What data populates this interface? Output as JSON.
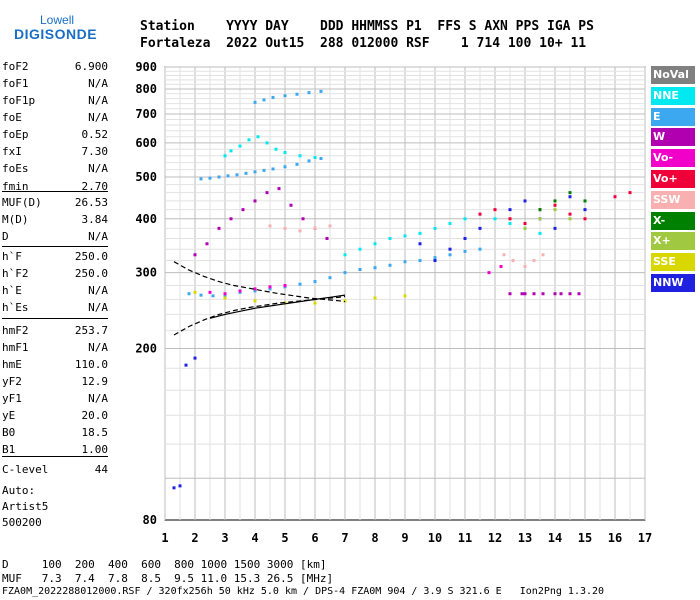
{
  "logo": {
    "top": "Lowell",
    "bottom": "DIGISONDE"
  },
  "header": {
    "line1": "Station    YYYY DAY    DDD HHMMSS P1  FFS S AXN PPS IGA PS",
    "line2": "Fortaleza  2022 Out15  288 012000 RSF    1 714 100 10+ 11"
  },
  "params": [
    {
      "name": "foF2",
      "value": "6.900"
    },
    {
      "name": "foF1",
      "value": "N/A"
    },
    {
      "name": "foF1p",
      "value": "N/A"
    },
    {
      "name": "foE",
      "value": "N/A"
    },
    {
      "name": "foEp",
      "value": "0.52"
    },
    {
      "name": "fxI",
      "value": "7.30"
    },
    {
      "name": "foEs",
      "value": "N/A"
    },
    {
      "name": "fmin",
      "value": "2.70"
    },
    {
      "name": "MUF(D)",
      "value": "26.53"
    },
    {
      "name": "M(D)",
      "value": "3.84"
    },
    {
      "name": "D",
      "value": "N/A"
    },
    {
      "name": "h`F",
      "value": "250.0"
    },
    {
      "name": "h`F2",
      "value": "250.0"
    },
    {
      "name": "h`E",
      "value": "N/A"
    },
    {
      "name": "h`Es",
      "value": "N/A"
    },
    {
      "name": "hmF2",
      "value": "253.7"
    },
    {
      "name": "hmF1",
      "value": "N/A"
    },
    {
      "name": "hmE",
      "value": "110.0"
    },
    {
      "name": "yF2",
      "value": "12.9"
    },
    {
      "name": "yF1",
      "value": "N/A"
    },
    {
      "name": "yE",
      "value": "20.0"
    },
    {
      "name": "B0",
      "value": "18.5"
    },
    {
      "name": "B1",
      "value": "1.00"
    },
    {
      "name": "C-level",
      "value": "44"
    }
  ],
  "auto": {
    "label": "Auto:",
    "artist": "Artist5",
    "version": "500200"
  },
  "legend": [
    {
      "label": "NoVal",
      "color": "#808080"
    },
    {
      "label": "NNE",
      "color": "#00e8f0"
    },
    {
      "label": "E",
      "color": "#3ca8f0"
    },
    {
      "label": "W",
      "color": "#b000b0"
    },
    {
      "label": "Vo-",
      "color": "#f000c8"
    },
    {
      "label": "Vo+",
      "color": "#f00038"
    },
    {
      "label": "SSW",
      "color": "#f8b0b0"
    },
    {
      "label": "X-",
      "color": "#008000"
    },
    {
      "label": "X+",
      "color": "#a0c840"
    },
    {
      "label": "SSE",
      "color": "#d8d800"
    },
    {
      "label": "NNW",
      "color": "#2020e0"
    }
  ],
  "footer": {
    "d_line": "D     100  200  400  600  800 1000 1500 3000 [km]",
    "muf_line": "MUF   7.3  7.4  7.8  8.5  9.5 11.0 15.3 26.5 [MHz]",
    "file_line": "FZA0M_2022288012000.RSF / 320fx256h 50 kHz 5.0 km / DPS-4 FZA0M 904 / 3.9 S 321.6 E   Ion2Png 1.3.20"
  },
  "chart_data": {
    "type": "scatter",
    "xlim": [
      1,
      17
    ],
    "ylim": [
      80,
      900
    ],
    "xticks": [
      "1",
      "2",
      "3",
      "4",
      "5",
      "6",
      "7",
      "8",
      "9",
      "10",
      "11",
      "12",
      "13",
      "14",
      "15",
      "16",
      "17"
    ],
    "yticks": [
      "80",
      "200",
      "300",
      "400",
      "500",
      "600",
      "700",
      "800",
      "900"
    ],
    "grid": true,
    "y_scale": "log",
    "series": [
      {
        "color": "#3ca8f0",
        "x": [
          1.8,
          2.2,
          2.6,
          3.0,
          3.5,
          4.0,
          4.5,
          5.0,
          5.5,
          6.0,
          6.5,
          7.0,
          7.5,
          8.0,
          8.5,
          9.0,
          9.5,
          10.0,
          10.5,
          11.0,
          11.5
        ],
        "y": [
          268,
          266,
          265,
          266,
          270,
          272,
          275,
          278,
          282,
          286,
          292,
          300,
          305,
          308,
          312,
          318,
          320,
          325,
          330,
          336,
          340
        ]
      },
      {
        "color": "#3ca8f0",
        "x": [
          2.2,
          2.5,
          2.8,
          3.1,
          3.4,
          3.7,
          4.0,
          4.3,
          4.6,
          5.0,
          5.4,
          5.8,
          6.2
        ],
        "y": [
          495,
          497,
          500,
          503,
          506,
          510,
          514,
          518,
          522,
          528,
          535,
          545,
          552
        ]
      },
      {
        "color": "#3ca8f0",
        "x": [
          4.0,
          4.3,
          4.6,
          5.0,
          5.4,
          5.8,
          6.2
        ],
        "y": [
          745,
          755,
          765,
          772,
          778,
          785,
          790
        ]
      },
      {
        "color": "#00e8f0",
        "x": [
          3.0,
          3.2,
          3.5,
          3.8,
          4.1,
          4.4,
          4.7,
          5.0,
          5.5,
          6.0
        ],
        "y": [
          560,
          575,
          590,
          610,
          620,
          600,
          580,
          570,
          560,
          555
        ]
      },
      {
        "color": "#00e8f0",
        "x": [
          7.0,
          7.5,
          8.0,
          8.5,
          9.0,
          9.5,
          10.0,
          10.5,
          11.0,
          11.5,
          12.0,
          12.5,
          13.0,
          13.5
        ],
        "y": [
          330,
          340,
          350,
          360,
          365,
          370,
          380,
          390,
          400,
          410,
          400,
          390,
          380,
          370
        ]
      },
      {
        "color": "#b000b0",
        "x": [
          2.0,
          2.4,
          2.8,
          3.2,
          3.6,
          4.0,
          4.4,
          4.8,
          5.2,
          5.6,
          6.0,
          6.4
        ],
        "y": [
          330,
          350,
          380,
          400,
          420,
          440,
          460,
          470,
          430,
          400,
          380,
          360
        ]
      },
      {
        "color": "#b000b0",
        "x": [
          12.5,
          12.9,
          13.0,
          13.3,
          13.6,
          14.0,
          14.2,
          14.5,
          14.8
        ],
        "y": [
          268,
          268,
          268,
          268,
          268,
          268,
          268,
          268,
          268
        ]
      },
      {
        "color": "#f8b0b0",
        "x": [
          4.5,
          5.0,
          5.5,
          6.0,
          6.5,
          12.3,
          12.6,
          13.0,
          13.3,
          13.6
        ],
        "y": [
          385,
          380,
          375,
          380,
          385,
          330,
          320,
          310,
          320,
          330
        ]
      },
      {
        "color": "#f00038",
        "x": [
          11.5,
          12.0,
          12.5,
          13.0,
          13.5,
          14.0,
          14.5,
          15.0,
          16.0,
          16.5
        ],
        "y": [
          410,
          420,
          400,
          390,
          420,
          430,
          410,
          400,
          450,
          460
        ]
      },
      {
        "color": "#2020e0",
        "x": [
          9.5,
          10.0,
          10.5,
          11.0,
          11.5,
          12.5,
          13.0,
          13.5,
          14.0,
          14.5,
          15.0
        ],
        "y": [
          350,
          320,
          340,
          360,
          380,
          420,
          440,
          400,
          380,
          450,
          420
        ]
      },
      {
        "color": "#2020e0",
        "x": [
          1.7,
          2.0
        ],
        "y": [
          183,
          190
        ]
      },
      {
        "color": "#2020e0",
        "x": [
          1.3,
          1.5
        ],
        "y": [
          95,
          96
        ]
      },
      {
        "color": "#d8d800",
        "x": [
          2.0,
          3.0,
          4.0,
          5.0,
          6.0,
          7.0,
          8.0,
          9.0
        ],
        "y": [
          270,
          262,
          258,
          255,
          255,
          258,
          262,
          265
        ]
      },
      {
        "color": "#008000",
        "x": [
          13.5,
          14.0,
          14.5,
          15.0
        ],
        "y": [
          420,
          440,
          460,
          440
        ]
      },
      {
        "color": "#a0c840",
        "x": [
          13.0,
          13.5,
          14.0,
          14.5
        ],
        "y": [
          380,
          400,
          420,
          400
        ]
      },
      {
        "color": "#f000c8",
        "x": [
          2.5,
          3.0,
          3.5,
          4.0,
          4.5,
          5.0,
          11.8,
          12.2
        ],
        "y": [
          270,
          268,
          272,
          275,
          278,
          280,
          300,
          310
        ]
      }
    ],
    "curves": [
      {
        "style": "dashed",
        "x": [
          1.3,
          1.8,
          2.3,
          2.8,
          3.3,
          3.8,
          4.3,
          4.8,
          5.3,
          5.8,
          6.3,
          6.8,
          7.0
        ],
        "y": [
          318,
          304,
          294,
          286,
          280,
          276,
          272,
          268,
          265,
          262,
          260,
          258,
          257
        ]
      },
      {
        "style": "dashed",
        "x": [
          1.3,
          1.8,
          2.3,
          2.8,
          3.3,
          3.8,
          4.3,
          4.8,
          5.3,
          5.8,
          6.3,
          6.8,
          7.0
        ],
        "y": [
          215,
          225,
          233,
          240,
          245,
          249,
          252,
          255,
          257,
          259,
          261,
          263,
          264
        ]
      },
      {
        "style": "solid",
        "x": [
          2.5,
          3.0,
          3.5,
          4.0,
          4.5,
          5.0,
          5.5,
          6.0,
          6.5,
          7.0
        ],
        "y": [
          235,
          240,
          244,
          248,
          251,
          254,
          257,
          260,
          263,
          266
        ]
      }
    ]
  }
}
